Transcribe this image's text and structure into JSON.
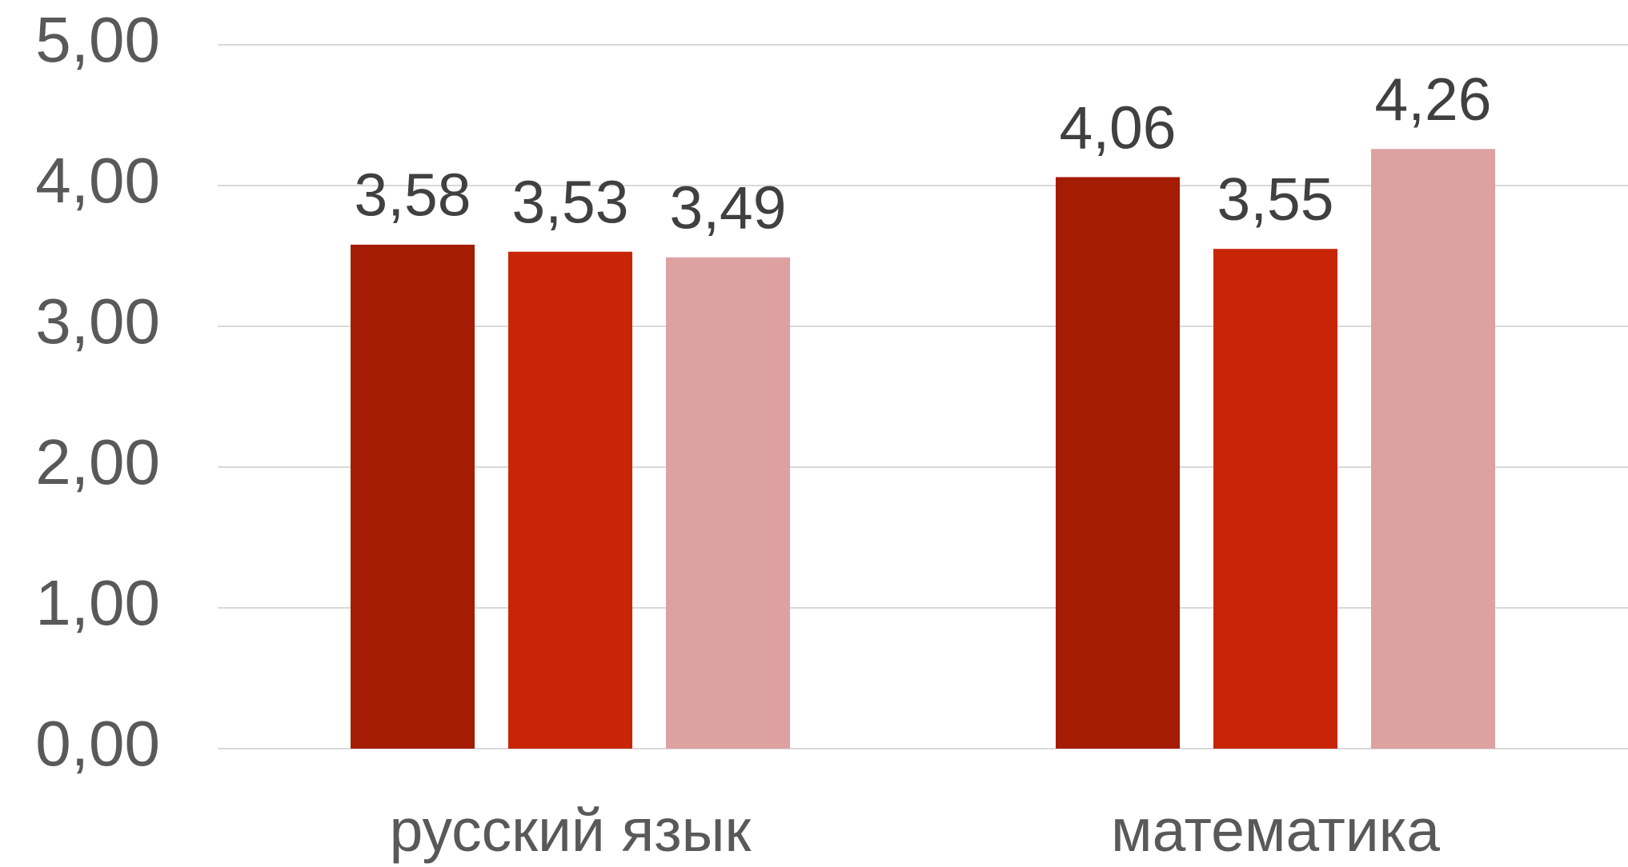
{
  "chart_data": {
    "type": "bar",
    "categories": [
      "русский язык",
      "математика"
    ],
    "series": [
      {
        "color": "#a51c05",
        "values": [
          3.58,
          4.06
        ],
        "value_labels": [
          "3,58",
          "4,06"
        ]
      },
      {
        "color": "#c82506",
        "values": [
          3.53,
          3.55
        ],
        "value_labels": [
          "3,53",
          "3,55"
        ]
      },
      {
        "color": "#dda1a1",
        "values": [
          3.49,
          4.26
        ],
        "value_labels": [
          "3,49",
          "4,26"
        ]
      }
    ],
    "ylim": [
      0,
      5
    ],
    "yticks": [
      {
        "value": 0,
        "label": "0,00"
      },
      {
        "value": 1,
        "label": "1,00"
      },
      {
        "value": 2,
        "label": "2,00"
      },
      {
        "value": 3,
        "label": "3,00"
      },
      {
        "value": 4,
        "label": "4,00"
      },
      {
        "value": 5,
        "label": "5,00"
      }
    ],
    "grid": true
  }
}
